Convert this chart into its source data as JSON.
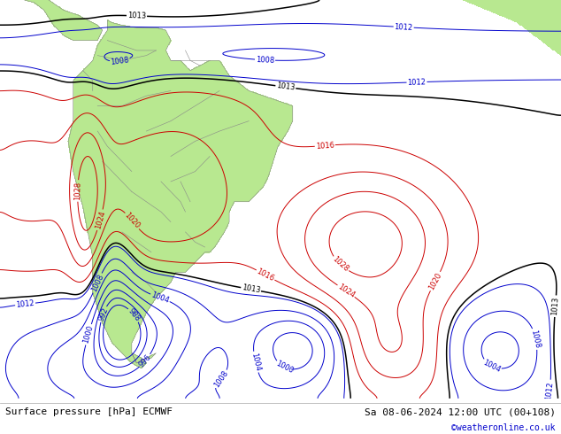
{
  "title_left": "Surface pressure [hPa] ECMWF",
  "title_right": "Sa 08-06-2024 12:00 UTC (00+108)",
  "credit": "©weatheronline.co.uk",
  "land_color": "#b8e890",
  "ocean_color": "#d4dce8",
  "fig_width": 6.34,
  "fig_height": 4.9,
  "dpi": 100,
  "bottom_bar_color": "#e0e0e0",
  "font_size_bottom": 8,
  "font_size_credit": 7,
  "credit_color": "#0000cc",
  "lon_min": -95,
  "lon_max": 20,
  "lat_min": -63,
  "lat_max": 16
}
